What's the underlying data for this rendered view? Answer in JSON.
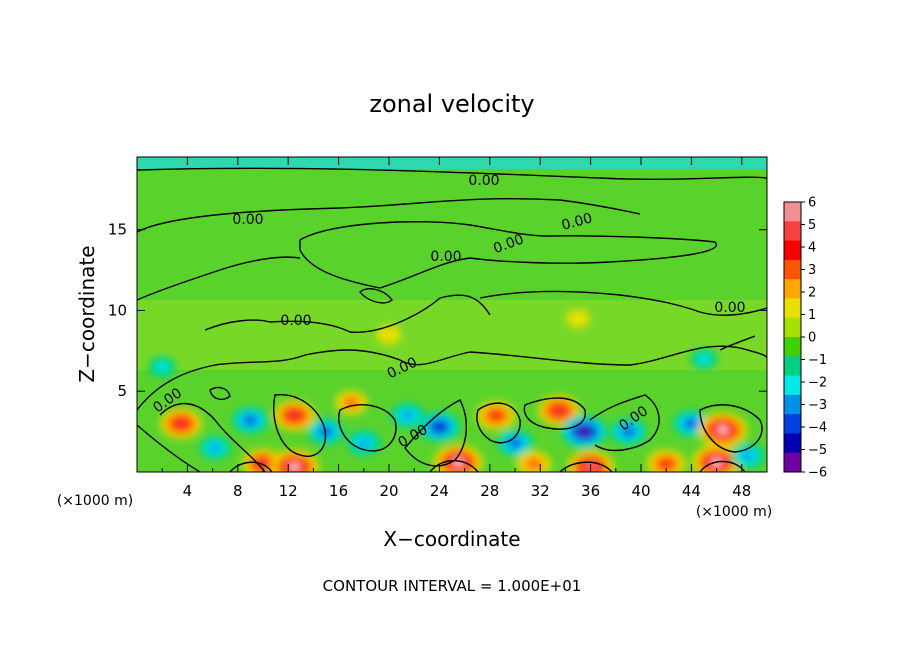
{
  "chart_data": {
    "type": "heatmap",
    "title": "zonal velocity",
    "xlabel": "X−coordinate",
    "ylabel": "Z−coordinate",
    "x_unit": "(×1000 m)",
    "y_unit": "(×1000 m)",
    "xlim": [
      0,
      50
    ],
    "ylim": [
      0,
      19.5
    ],
    "x_ticks": [
      "4",
      "8",
      "12",
      "16",
      "20",
      "24",
      "28",
      "32",
      "36",
      "40",
      "44",
      "48"
    ],
    "y_ticks": [
      "5",
      "10",
      "15"
    ],
    "colorbar": {
      "min": -6,
      "max": 6,
      "ticks": [
        "6",
        "5",
        "4",
        "3",
        "2",
        "1",
        "0",
        "−1",
        "−2",
        "−3",
        "−4",
        "−5",
        "−6"
      ],
      "colors": [
        "#f09090",
        "#f84040",
        "#f80000",
        "#ff5500",
        "#ffa500",
        "#e8e000",
        "#a8e000",
        "#40d000",
        "#00d080",
        "#00e8e8",
        "#0090e8",
        "#0040e0",
        "#0000b0",
        "#7000a0"
      ]
    },
    "contour_labels": [
      "0.00",
      "0.00",
      "0.00",
      "0.00",
      "0.00",
      "0.00",
      "0.00",
      "0.00",
      "0.00",
      "0.00",
      "0.00"
    ],
    "annotation": "CONTOUR INTERVAL = 1.000E+01",
    "features": [
      {
        "x": 3.5,
        "z": 3.0,
        "value": 4.5
      },
      {
        "x": 6.2,
        "z": 1.5,
        "value": -2.5
      },
      {
        "x": 9.0,
        "z": 3.2,
        "value": -3.5
      },
      {
        "x": 10.0,
        "z": 0.5,
        "value": 4.5
      },
      {
        "x": 12.5,
        "z": 3.5,
        "value": 4.5
      },
      {
        "x": 12.5,
        "z": 0.3,
        "value": 6.0
      },
      {
        "x": 15.0,
        "z": 2.5,
        "value": -3.5
      },
      {
        "x": 17.0,
        "z": 4.3,
        "value": 2.5
      },
      {
        "x": 18.0,
        "z": 1.8,
        "value": -3.0
      },
      {
        "x": 21.5,
        "z": 3.5,
        "value": -3.0
      },
      {
        "x": 24.0,
        "z": 2.8,
        "value": -4.5
      },
      {
        "x": 25.5,
        "z": 0.6,
        "value": 6.0
      },
      {
        "x": 28.5,
        "z": 3.5,
        "value": 4.0
      },
      {
        "x": 30.0,
        "z": 1.8,
        "value": -3.5
      },
      {
        "x": 31.5,
        "z": 0.5,
        "value": 3.0
      },
      {
        "x": 33.5,
        "z": 3.8,
        "value": 4.5
      },
      {
        "x": 35.5,
        "z": 2.5,
        "value": -5.5
      },
      {
        "x": 36.0,
        "z": 0.3,
        "value": 5.5
      },
      {
        "x": 39.0,
        "z": 2.5,
        "value": -3.5
      },
      {
        "x": 42.0,
        "z": 0.5,
        "value": 4.0
      },
      {
        "x": 44.0,
        "z": 3.0,
        "value": -3.5
      },
      {
        "x": 46.5,
        "z": 2.6,
        "value": 6.0
      },
      {
        "x": 46.0,
        "z": 0.6,
        "value": 6.0
      },
      {
        "x": 48.5,
        "z": 1.0,
        "value": -3.0
      },
      {
        "x": 2.0,
        "z": 6.5,
        "value": -1.5
      },
      {
        "x": 45.0,
        "z": 7.0,
        "value": -1.5
      },
      {
        "x": 20.0,
        "z": 8.5,
        "value": 1.0
      },
      {
        "x": 35.0,
        "z": 9.5,
        "value": 0.8
      }
    ]
  }
}
